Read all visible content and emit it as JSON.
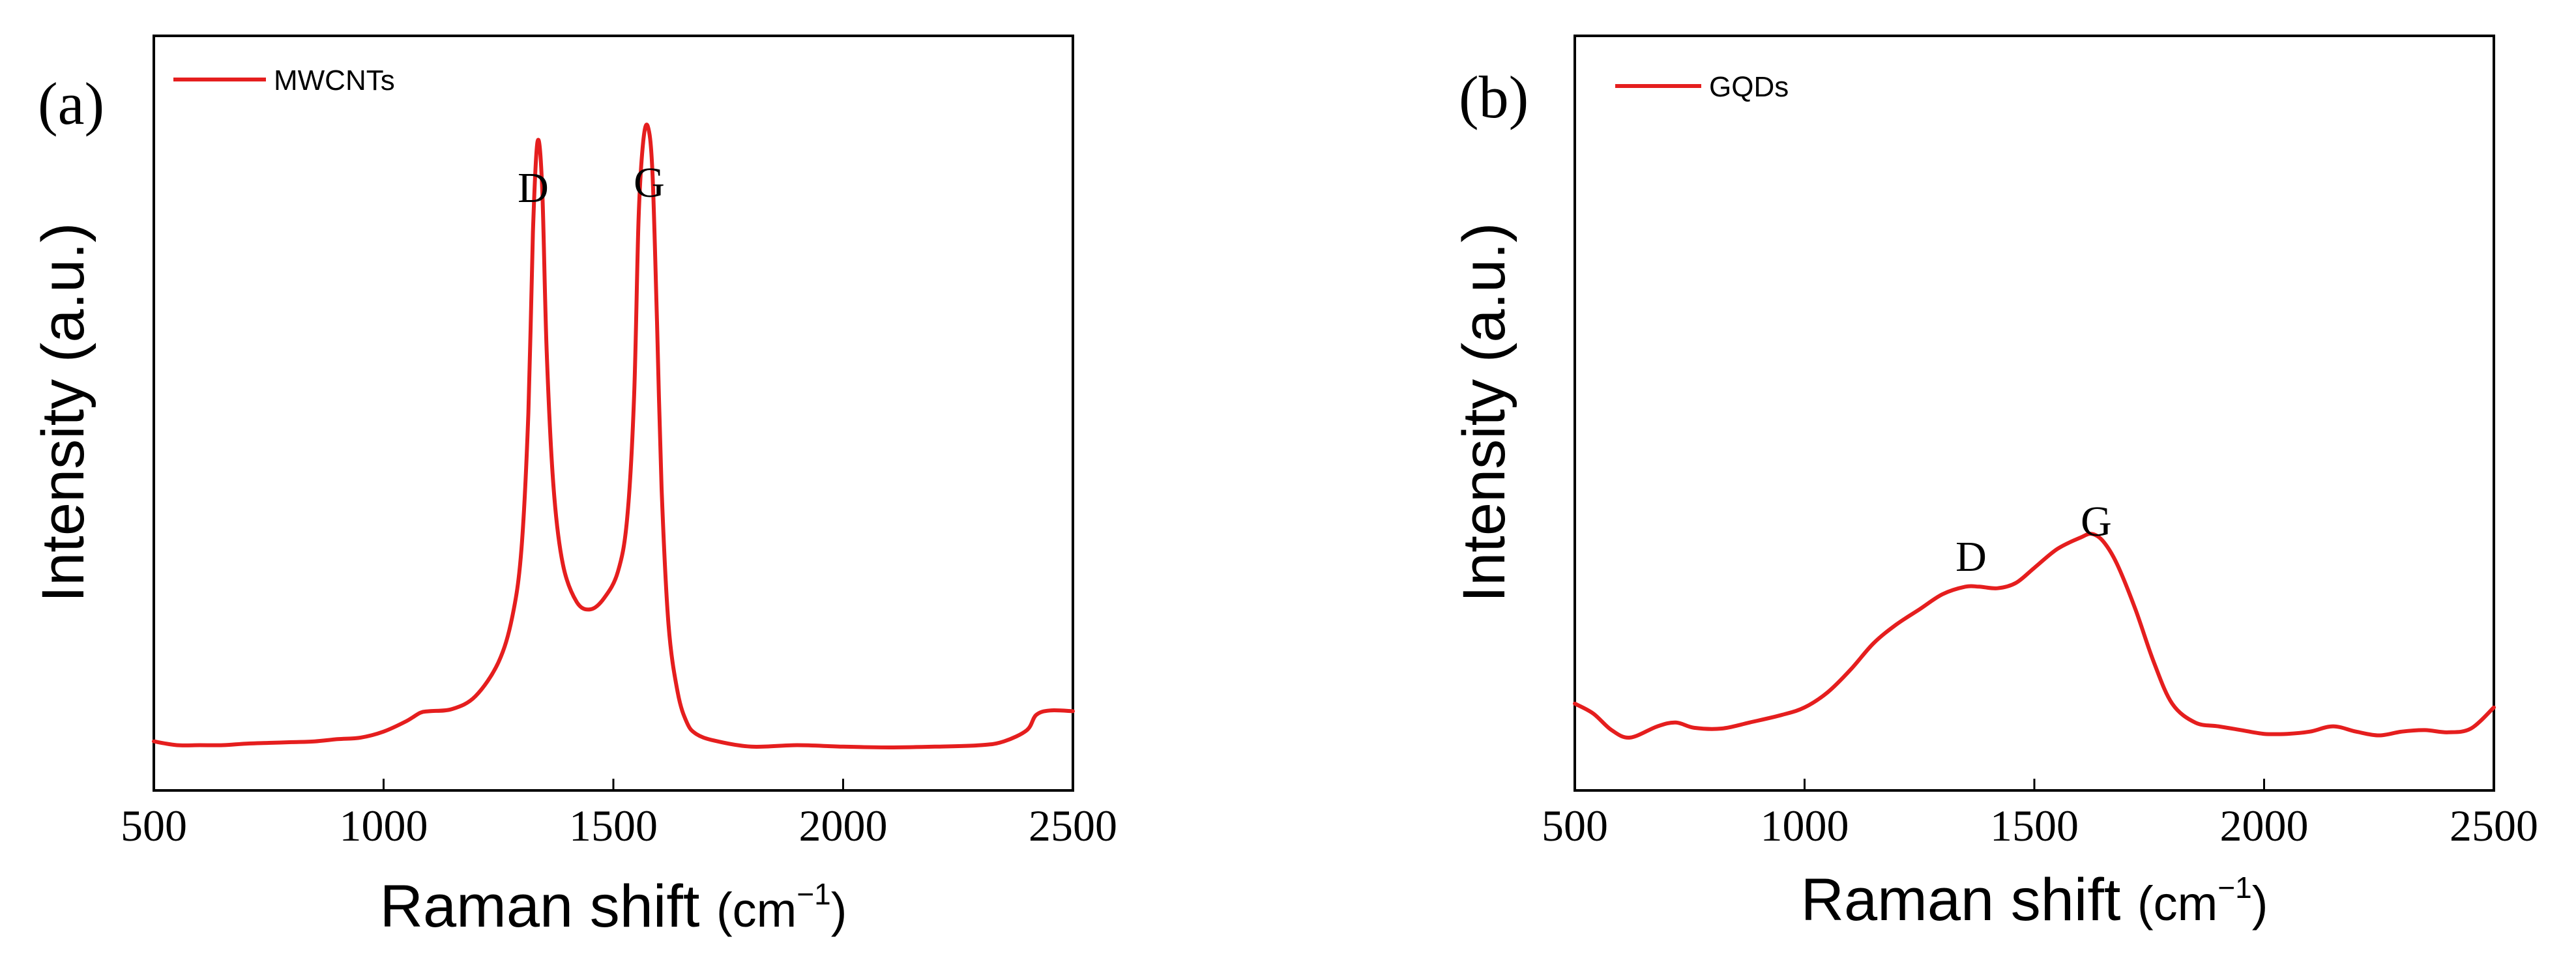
{
  "colors": {
    "series": "#e51e1e",
    "axis": "#000000",
    "background": "#ffffff"
  },
  "chart_data": [
    {
      "panel": "(a)",
      "type": "line",
      "title": "",
      "xlabel": "Raman shift (cm⁻¹)",
      "xlabel_main": "Raman shift",
      "xlabel_unit": "(cm",
      "xlabel_exp": "−1",
      "xlabel_close": ")",
      "ylabel": "Intensity (a.u.)",
      "xlim": [
        500,
        2500
      ],
      "ylim": [
        0,
        100
      ],
      "xticks": [
        500,
        1000,
        1500,
        2000,
        2500
      ],
      "xtick_labels": [
        "500",
        "1000",
        "1500",
        "2000",
        "2500"
      ],
      "legend": {
        "label": "MWCNTs",
        "position": "top-left"
      },
      "annotations": [
        {
          "text": "D",
          "x": 1335,
          "y": 89
        },
        {
          "text": "G",
          "x": 1575,
          "y": 90.5
        }
      ],
      "series": [
        {
          "name": "MWCNTs",
          "x": [
            500,
            550,
            600,
            650,
            700,
            750,
            800,
            850,
            900,
            950,
            1000,
            1050,
            1080,
            1100,
            1150,
            1200,
            1250,
            1280,
            1300,
            1315,
            1325,
            1335,
            1345,
            1355,
            1370,
            1390,
            1420,
            1450,
            1480,
            1510,
            1530,
            1545,
            1555,
            1565,
            1575,
            1585,
            1595,
            1605,
            1620,
            1640,
            1660,
            1680,
            1720,
            1800,
            1900,
            2000,
            2100,
            2200,
            2300,
            2350,
            2400,
            2420,
            2450,
            2500
          ],
          "y": [
            6.5,
            6.0,
            6.0,
            6.0,
            6.2,
            6.3,
            6.4,
            6.5,
            6.8,
            7.0,
            7.8,
            9.2,
            10.3,
            10.5,
            10.8,
            12.5,
            17.0,
            23.0,
            32.0,
            50.0,
            74.0,
            86.0,
            80.0,
            58.0,
            40.0,
            30.0,
            25.0,
            24.0,
            25.5,
            29.0,
            36.0,
            52.0,
            76.0,
            86.0,
            88.0,
            82.0,
            62.0,
            40.0,
            22.0,
            13.0,
            9.0,
            7.5,
            6.6,
            5.8,
            6.0,
            5.8,
            5.7,
            5.8,
            6.0,
            6.5,
            8.0,
            10.0,
            10.6,
            10.5
          ]
        }
      ]
    },
    {
      "panel": "(b)",
      "type": "line",
      "title": "",
      "xlabel": "Raman shift (cm⁻¹)",
      "xlabel_main": "Raman shift",
      "xlabel_unit": "(cm",
      "xlabel_exp": "−1",
      "xlabel_close": ")",
      "ylabel": "Intensity (a.u.)",
      "xlim": [
        500,
        2500
      ],
      "ylim": [
        0,
        100
      ],
      "xticks": [
        500,
        1000,
        1500,
        2000,
        2500
      ],
      "xtick_labels": [
        "500",
        "1000",
        "1500",
        "2000",
        "2500"
      ],
      "legend": {
        "label": "GQDs",
        "position": "top-left"
      },
      "annotations": [
        {
          "text": "D",
          "x": 1360,
          "y": 32.0
        },
        {
          "text": "G",
          "x": 1625,
          "y": 37.0
        }
      ],
      "series": [
        {
          "name": "GQDs",
          "x": [
            500,
            540,
            580,
            620,
            680,
            720,
            760,
            820,
            880,
            950,
            1000,
            1050,
            1100,
            1150,
            1200,
            1250,
            1300,
            1350,
            1380,
            1420,
            1460,
            1500,
            1550,
            1600,
            1625,
            1650,
            1680,
            1720,
            1760,
            1800,
            1850,
            1900,
            1950,
            2000,
            2050,
            2100,
            2150,
            2200,
            2250,
            2300,
            2350,
            2400,
            2450,
            2500
          ],
          "y": [
            11.5,
            10.2,
            8.0,
            7.0,
            8.5,
            9.0,
            8.3,
            8.2,
            9.0,
            10.0,
            11.0,
            13.0,
            16.0,
            19.5,
            22.0,
            24.0,
            26.0,
            27.0,
            27.0,
            26.8,
            27.5,
            29.5,
            32.0,
            33.5,
            34.0,
            33.0,
            30.0,
            24.0,
            17.0,
            11.5,
            9.0,
            8.5,
            8.0,
            7.5,
            7.5,
            7.8,
            8.5,
            7.8,
            7.3,
            7.8,
            8.0,
            7.7,
            8.2,
            11.0
          ]
        }
      ]
    }
  ]
}
